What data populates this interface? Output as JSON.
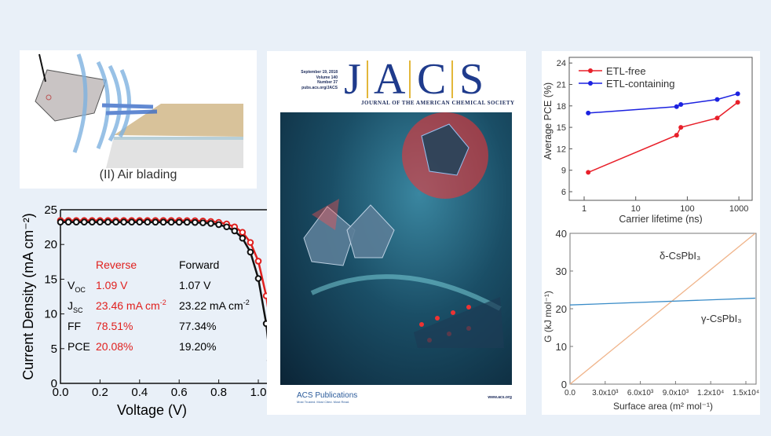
{
  "air_blading": {
    "caption": "(II) Air blading"
  },
  "cover": {
    "date": "September 19, 2018",
    "volume": "Volume 140",
    "number": "Number 37",
    "url": "pubs.acs.org/JACS",
    "letters": [
      "J",
      "A",
      "C",
      "S"
    ],
    "subtitle": "JOURNAL OF THE AMERICAN CHEMICAL SOCIETY",
    "publisher": "ACS Publications",
    "tagline": "Most Trusted. Most Cited. Most Read.",
    "website": "www.acs.org"
  },
  "chart_data": [
    {
      "type": "line",
      "title": "",
      "xlabel": "Voltage (V)",
      "ylabel": "Current Density (mA cm⁻²)",
      "xlim": [
        0,
        1.1
      ],
      "ylim": [
        0,
        25
      ],
      "xticks": [
        "0.0",
        "0.2",
        "0.4",
        "0.6",
        "0.8",
        "1.0"
      ],
      "yticks": [
        "0",
        "5",
        "10",
        "15",
        "20",
        "25"
      ],
      "series": [
        {
          "name": "Reverse",
          "color": "#e0201e",
          "x": [
            0,
            0.04,
            0.08,
            0.12,
            0.16,
            0.2,
            0.24,
            0.28,
            0.32,
            0.36,
            0.4,
            0.44,
            0.48,
            0.52,
            0.56,
            0.6,
            0.64,
            0.68,
            0.72,
            0.76,
            0.8,
            0.84,
            0.88,
            0.92,
            0.96,
            1.0,
            1.04,
            1.06,
            1.08,
            1.09
          ],
          "y": [
            23.46,
            23.46,
            23.46,
            23.46,
            23.46,
            23.46,
            23.46,
            23.46,
            23.46,
            23.46,
            23.46,
            23.46,
            23.46,
            23.45,
            23.45,
            23.45,
            23.44,
            23.42,
            23.38,
            23.31,
            23.19,
            22.96,
            22.53,
            21.75,
            20.29,
            17.6,
            12.6,
            8.7,
            3.35,
            0
          ]
        },
        {
          "name": "Forward",
          "color": "#111111",
          "x": [
            0,
            0.04,
            0.08,
            0.12,
            0.16,
            0.2,
            0.24,
            0.28,
            0.32,
            0.36,
            0.4,
            0.44,
            0.48,
            0.52,
            0.56,
            0.6,
            0.64,
            0.68,
            0.72,
            0.76,
            0.8,
            0.84,
            0.88,
            0.92,
            0.96,
            1.0,
            1.04,
            1.06,
            1.07
          ],
          "y": [
            23.22,
            23.22,
            23.22,
            23.22,
            23.22,
            23.22,
            23.22,
            23.22,
            23.22,
            23.22,
            23.22,
            23.22,
            23.21,
            23.21,
            23.21,
            23.2,
            23.2,
            23.17,
            23.12,
            23.03,
            22.86,
            22.54,
            21.95,
            20.9,
            18.9,
            15.1,
            8.6,
            3.3,
            0
          ]
        }
      ],
      "table": {
        "headers": [
          "",
          "Reverse",
          "Forward"
        ],
        "rows": [
          {
            "label": "V",
            "sub": "OC",
            "reverse": "1.09 V",
            "forward": "1.07 V"
          },
          {
            "label": "J",
            "sub": "SC",
            "reverse": "23.46 mA cm",
            "reverse_sup": "-2",
            "forward": "23.22 mA cm",
            "forward_sup": "-2"
          },
          {
            "label": "FF",
            "sub": "",
            "reverse": "78.51%",
            "forward": "77.34%"
          },
          {
            "label": "PCE",
            "sub": "",
            "reverse": "20.08%",
            "forward": "19.20%"
          }
        ]
      }
    },
    {
      "type": "line",
      "xlabel": "Carrier lifetime (ns)",
      "ylabel": "Average PCE (%)",
      "xscale": "log",
      "xlim": [
        0.5,
        1500
      ],
      "ylim": [
        5,
        25
      ],
      "xticks": [
        "1",
        "10",
        "100",
        "1000"
      ],
      "yticks": [
        "6",
        "9",
        "12",
        "15",
        "18",
        "21",
        "24"
      ],
      "legend": "top-left",
      "series": [
        {
          "name": "ETL-free",
          "color": "#e8202a",
          "x": [
            1.2,
            62,
            75,
            380,
            950
          ],
          "y": [
            8.7,
            13.9,
            15.0,
            16.3,
            18.5
          ]
        },
        {
          "name": "ETL-containing",
          "color": "#1c22e0",
          "x": [
            1.2,
            62,
            75,
            380,
            950
          ],
          "y": [
            17.0,
            17.9,
            18.2,
            18.9,
            19.7
          ]
        }
      ]
    },
    {
      "type": "line",
      "xlabel": "Surface area (m² mol⁻¹)",
      "ylabel": "G (kJ mol⁻¹)",
      "xlim": [
        0,
        16000
      ],
      "ylim": [
        0,
        40
      ],
      "xticks": [
        "0.0",
        "3.0x10³",
        "6.0x10³",
        "9.0x10³",
        "1.2x10⁴",
        "1.5x10⁴"
      ],
      "yticks": [
        "0",
        "10",
        "20",
        "30",
        "40"
      ],
      "series": [
        {
          "name": "δ-CsPbI₃",
          "color": "#f0b48a",
          "x": [
            0,
            15800
          ],
          "y": [
            0,
            40
          ]
        },
        {
          "name": "γ-CsPbI₃",
          "color": "#3a8cc8",
          "x": [
            0,
            15800
          ],
          "y": [
            21,
            22.8
          ]
        }
      ]
    }
  ]
}
